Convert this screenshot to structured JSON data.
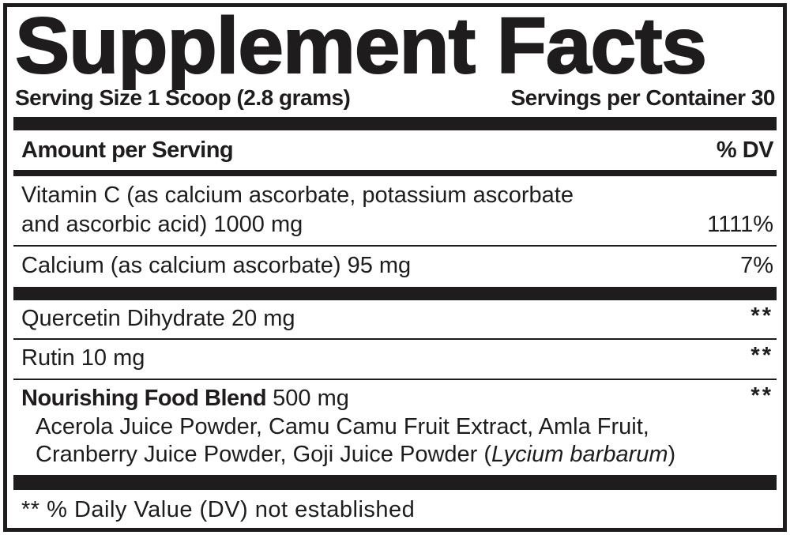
{
  "panel": {
    "title": "Supplement Facts",
    "serving_size": "Serving Size 1 Scoop (2.8 grams)",
    "servings_per_container": "Servings per Container 30",
    "columns": {
      "amount": "Amount per Serving",
      "dv": "% DV"
    },
    "nutrients": [
      {
        "name_line_1": "Vitamin C (as calcium ascorbate, potassium ascorbate",
        "name_line_2": "and ascorbic acid) 1000 mg",
        "dv": "1111%"
      },
      {
        "name": "Calcium (as calcium ascorbate) 95 mg",
        "dv": "7%"
      },
      {
        "name": "Quercetin Dihydrate 20 mg",
        "dv": "**"
      },
      {
        "name": "Rutin 10 mg",
        "dv": "**"
      },
      {
        "name_bold": "Nourishing Food Blend",
        "name_rest": " 500 mg",
        "dv": "**",
        "sub_line_1": "Acerola Juice Powder, Camu Camu Fruit Extract, Amla Fruit,",
        "sub_line_2_pre": "Cranberry Juice Powder, Goji Juice Powder (",
        "sub_line_2_italic": "Lycium barbarum",
        "sub_line_2_post": ")"
      }
    ],
    "footnote": "** % Daily Value (DV) not established",
    "colors": {
      "ink": "#1e1c1d",
      "background": "#ffffff"
    }
  }
}
